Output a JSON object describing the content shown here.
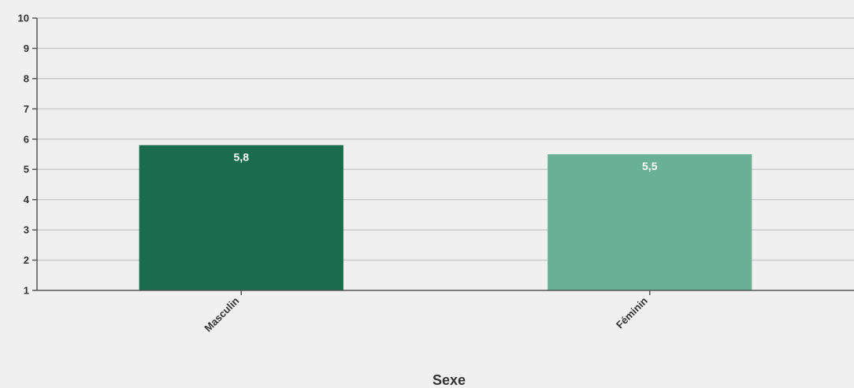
{
  "chart_data": {
    "type": "bar",
    "categories": [
      "Masculin",
      "Féminin"
    ],
    "values": [
      5.8,
      5.5
    ],
    "value_labels": [
      "5,8",
      "5,5"
    ],
    "bar_colors": [
      "#1b6b4e",
      "#6ab096"
    ],
    "xlabel": "Sexe",
    "ylabel": "",
    "ylim": [
      1,
      10
    ],
    "yticks": [
      1,
      2,
      3,
      4,
      5,
      6,
      7,
      8,
      9,
      10
    ],
    "grid": true,
    "grid_color": "#cccccc",
    "axis_color": "#555555",
    "background": "#f0f0f0"
  }
}
